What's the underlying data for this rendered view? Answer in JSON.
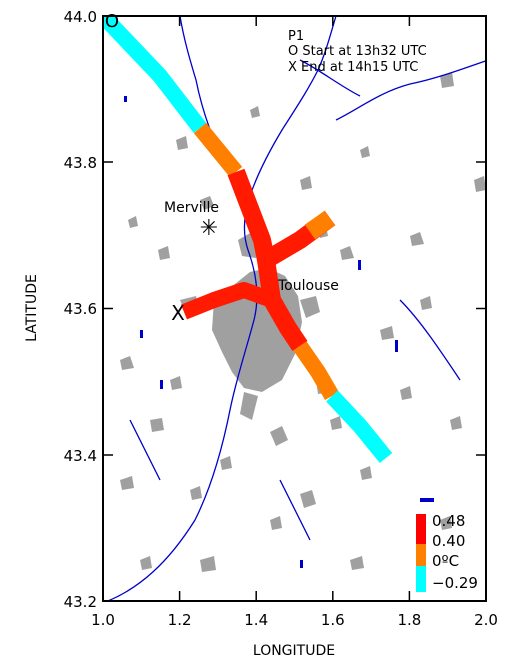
{
  "map": {
    "xlabel": "LONGITUDE",
    "ylabel": "LATITUDE",
    "x_ticks": [
      "1.0",
      "1.2",
      "1.4",
      "1.6",
      "1.8",
      "2.0"
    ],
    "y_ticks": [
      "44.0",
      "43.8",
      "43.6",
      "43.4",
      "43.2"
    ],
    "xlim": [
      1.0,
      2.0
    ],
    "ylim": [
      43.2,
      44.0
    ]
  },
  "annotation": {
    "line1": "P1",
    "line2": "O Start at 13h32 UTC",
    "line3": "X End at 14h15 UTC"
  },
  "places": {
    "merville": "Merville",
    "toulouse": "Toulouse",
    "start_marker": "O",
    "end_marker": "X",
    "station_marker": "✳"
  },
  "legend": {
    "title": "",
    "values": [
      "0.48",
      "0.40",
      "0ºC",
      "−0.29"
    ],
    "colors": [
      "#ff0000",
      "#ff3300",
      "#ff8000",
      "#00ffff"
    ]
  },
  "colors": {
    "urban": "#a0a0a0",
    "water": "#0000cc",
    "track_cold": "#00ffff",
    "track_warm": "#ff8000",
    "track_hot": "#ff1a00"
  }
}
